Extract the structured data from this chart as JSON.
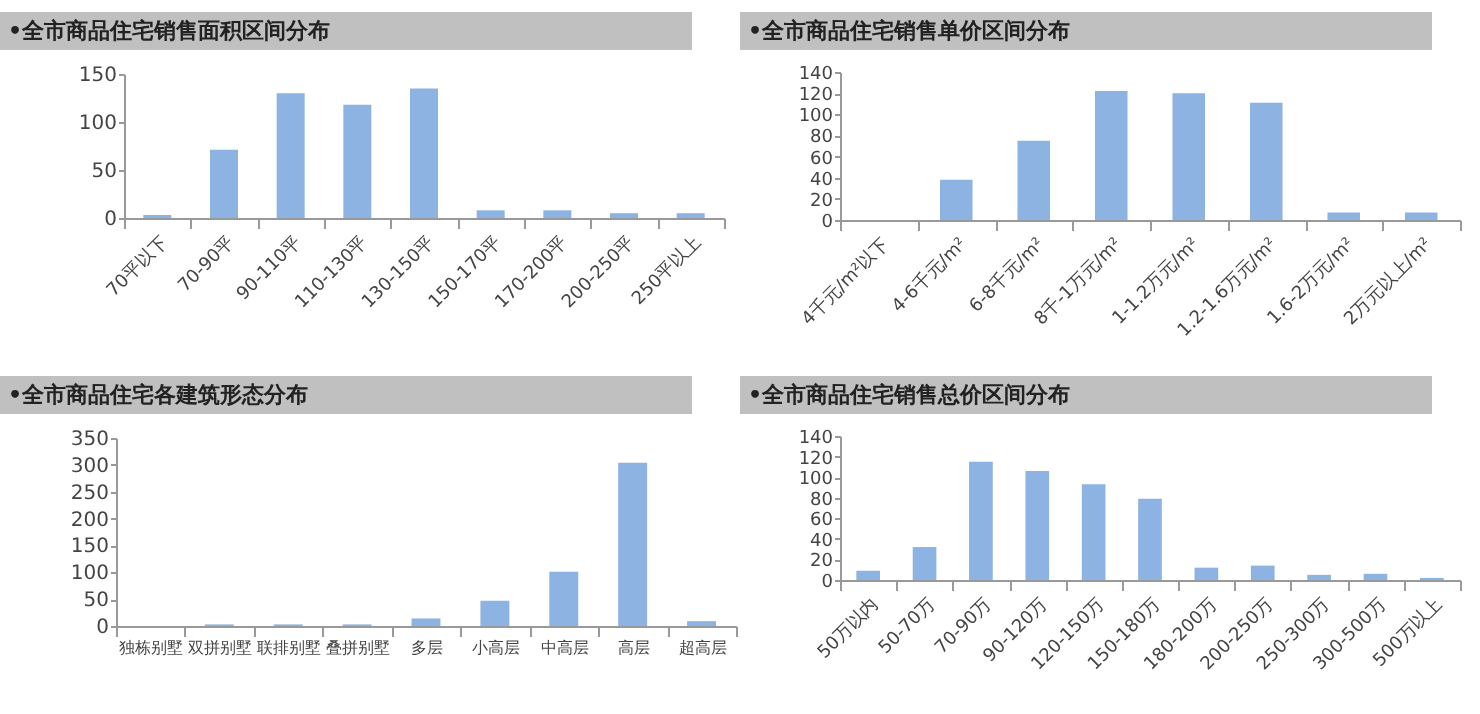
{
  "chart_data": [
    {
      "type": "bar",
      "title": "•全市商品住宅销售面积区间分布",
      "categories": [
        "70平以下",
        "70-90平",
        "90-110平",
        "110-130平",
        "130-150平",
        "150-170平",
        "170-200平",
        "200-250平",
        "250平以上"
      ],
      "values": [
        3,
        71,
        130,
        118,
        135,
        8,
        8,
        5,
        5
      ],
      "color": "#8db3e2",
      "ylim": [
        0,
        150
      ],
      "yticks": [
        0,
        50,
        100,
        150
      ]
    },
    {
      "type": "bar",
      "title": "•全市商品住宅销售单价区间分布",
      "categories": [
        "4千元/m²以下",
        "4-6千元/m²",
        "6-8千元/m²",
        "8千-1万元/m²",
        "1-1.2万元/m²",
        "1.2-1.6万元/m²",
        "1.6-2万元/m²",
        "2万元以上/m²"
      ],
      "values": [
        0,
        38,
        75,
        122,
        120,
        111,
        7,
        7
      ],
      "color": "#8db3e2",
      "ylim": [
        0,
        140
      ],
      "yticks": [
        0,
        20,
        40,
        60,
        80,
        100,
        120,
        140
      ]
    },
    {
      "type": "bar",
      "title": "•全市商品住宅各建筑形态分布",
      "categories": [
        "独栋别墅",
        "双拼别墅",
        "联排别墅",
        "叠拼别墅",
        "多层",
        "小高层",
        "中高层",
        "高层",
        "超高层"
      ],
      "values": [
        0,
        3,
        3,
        3,
        14,
        47,
        101,
        304,
        9
      ],
      "color": "#8db3e2",
      "ylim": [
        0,
        350
      ],
      "yticks": [
        0,
        50,
        100,
        150,
        200,
        250,
        300,
        350
      ]
    },
    {
      "type": "bar",
      "title": "•全市商品住宅销售总价区间分布",
      "categories": [
        "50万以内",
        "50-70万",
        "70-90万",
        "90-120万",
        "120-150万",
        "150-180万",
        "180-200万",
        "200-250万",
        "250-300万",
        "300-500万",
        "500万以上"
      ],
      "values": [
        9,
        32,
        115,
        106,
        93,
        79,
        12,
        14,
        5,
        6,
        2
      ],
      "color": "#8db3e2",
      "ylim": [
        0,
        140
      ],
      "yticks": [
        0,
        20,
        40,
        60,
        80,
        100,
        120,
        140
      ]
    }
  ]
}
